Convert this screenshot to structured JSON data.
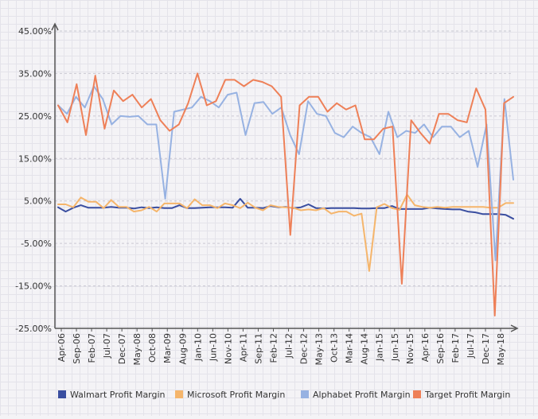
{
  "chart_data": {
    "type": "line",
    "title": "",
    "xlabel": "",
    "ylabel": "",
    "ylim": [
      -25,
      45
    ],
    "yticks": [
      "45.00%",
      "35.00%",
      "25.00%",
      "15.00%",
      "5.00%",
      "-5.00%",
      "-15.00%",
      "-25.00%"
    ],
    "ytick_values": [
      45,
      35,
      25,
      15,
      5,
      -5,
      -15,
      -25
    ],
    "x_tick_labels": [
      "Apr-06",
      "Sep-06",
      "Feb-07",
      "Jul-07",
      "Dec-07",
      "May-08",
      "Oct-08",
      "Mar-09",
      "Aug-09",
      "Jan-10",
      "Jun-10",
      "Nov-10",
      "Apr-11",
      "Sep-11",
      "Feb-12",
      "Jul-12",
      "Dec-12",
      "May-13",
      "Oct-13",
      "Mar-14",
      "Aug-14",
      "Jan-15",
      "Jun-15",
      "Nov-15",
      "Apr-16",
      "Sep-16",
      "Feb-17",
      "Jul-17",
      "Dec-17",
      "May-18"
    ],
    "legend_position": "bottom",
    "series": [
      {
        "name": "Walmart Profit Margin",
        "color": "#3a4ea0",
        "values": [
          3.5,
          2.5,
          3.4,
          4.0,
          3.4,
          3.4,
          3.4,
          3.6,
          3.4,
          3.4,
          3.2,
          3.5,
          3.3,
          3.5,
          3.3,
          3.3,
          4.0,
          3.3,
          3.3,
          3.4,
          3.5,
          3.5,
          3.5,
          3.4,
          5.5,
          3.4,
          3.4,
          3.3,
          3.8,
          3.5,
          3.6,
          3.3,
          3.5,
          4.2,
          3.3,
          3.2,
          3.3,
          3.3,
          3.3,
          3.3,
          3.2,
          3.2,
          3.3,
          3.3,
          3.8,
          3.1,
          3.1,
          3.1,
          3.1,
          3.4,
          3.2,
          3.1,
          3.0,
          3.0,
          2.5,
          2.3,
          1.9,
          1.9,
          1.9,
          1.7,
          0.8
        ]
      },
      {
        "name": "Microsoft Profit Margin",
        "color": "#f5b56b",
        "values": [
          4.2,
          4.2,
          3.5,
          5.8,
          4.8,
          4.8,
          3.3,
          5.2,
          3.6,
          3.6,
          2.5,
          2.8,
          3.6,
          2.5,
          4.4,
          4.4,
          4.4,
          3.3,
          5.4,
          4.0,
          4.0,
          3.3,
          4.4,
          4.0,
          3.3,
          4.6,
          3.4,
          2.8,
          4.0,
          3.6,
          3.5,
          3.4,
          2.8,
          3.0,
          2.8,
          3.3,
          2.0,
          2.5,
          2.5,
          1.5,
          2.0,
          -11.5,
          3.5,
          4.3,
          3.3,
          2.9,
          6.5,
          4.0,
          3.6,
          3.4,
          3.6,
          3.4,
          3.6,
          3.6,
          3.6,
          3.6,
          3.6,
          3.4,
          3.4,
          4.5,
          4.5
        ]
      },
      {
        "name": "Alphabet Profit Margin",
        "color": "#97b2e2",
        "values": [
          27.5,
          25.5,
          29.5,
          27.0,
          32.0,
          29.0,
          23.0,
          25.0,
          24.8,
          25.0,
          23.0,
          23.0,
          5.5,
          26.0,
          26.5,
          27.0,
          29.5,
          28.5,
          27.0,
          30.0,
          30.5,
          20.5,
          28.0,
          28.3,
          25.5,
          27.0,
          20.5,
          16.0,
          28.5,
          25.5,
          25.0,
          21.0,
          20.0,
          22.5,
          21.0,
          20.0,
          16.0,
          26.0,
          20.0,
          21.5,
          21.0,
          23.0,
          20.0,
          22.5,
          22.5,
          20.0,
          21.5,
          13.0,
          23.0,
          -9.0,
          29.0,
          10.0
        ]
      },
      {
        "name": "Target Profit Margin",
        "color": "#ee8058",
        "values": [
          27.5,
          23.5,
          32.5,
          20.5,
          34.5,
          22.0,
          31.0,
          28.5,
          30.0,
          27.0,
          29.0,
          24.0,
          21.5,
          23.0,
          28.0,
          35.0,
          27.5,
          28.5,
          33.5,
          33.5,
          32.0,
          33.5,
          33.0,
          32.0,
          29.5,
          -3.0,
          27.5,
          29.5,
          29.5,
          26.0,
          28.0,
          26.5,
          27.5,
          19.5,
          19.5,
          22.0,
          22.5,
          -14.5,
          24.0,
          21.0,
          18.5,
          25.5,
          25.5,
          24.0,
          23.5,
          31.5,
          26.5,
          -22.0,
          28.0,
          29.5
        ]
      }
    ]
  }
}
